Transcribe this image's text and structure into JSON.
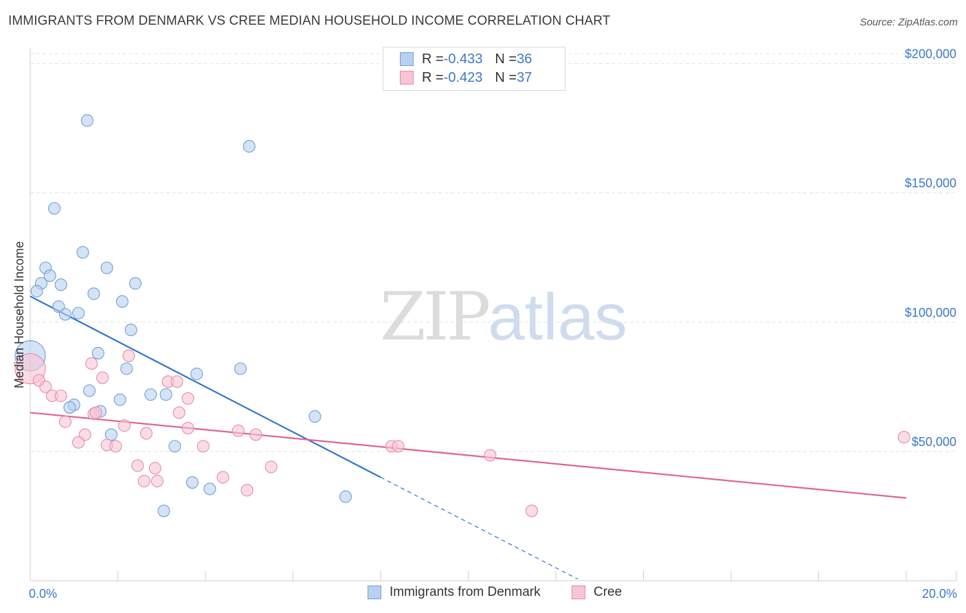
{
  "header": {
    "title": "IMMIGRANTS FROM DENMARK VS CREE MEDIAN HOUSEHOLD INCOME CORRELATION CHART",
    "source": "Source: ZipAtlas.com"
  },
  "watermark": {
    "zip": "ZIP",
    "atlas": "atlas"
  },
  "legend": {
    "rows": [
      {
        "r_label": "R = ",
        "r_value": "-0.433",
        "n_label": "N = ",
        "n_value": "36"
      },
      {
        "r_label": "R = ",
        "r_value": "-0.423",
        "n_label": "N = ",
        "n_value": "37"
      }
    ]
  },
  "bottom_legend": {
    "series1": "Immigrants from Denmark",
    "series2": "Cree"
  },
  "colors": {
    "series1_fill": "#b8d0ef",
    "series1_stroke": "#6f9fd8",
    "series1_line": "#2f74d0",
    "series2_fill": "#f7c5d4",
    "series2_stroke": "#e88aa8",
    "series2_line": "#e0648e",
    "tick": "#3b78c9",
    "grid": "#e3e3e3"
  },
  "chart_data": {
    "type": "scatter",
    "title": "IMMIGRANTS FROM DENMARK VS CREE MEDIAN HOUSEHOLD INCOME CORRELATION CHART",
    "xlabel": "",
    "ylabel": "Median Household Income",
    "xlim": [
      0,
      20.8
    ],
    "ylim": [
      0,
      206000
    ],
    "x_tick_labels": [
      {
        "value": 0,
        "label": "0.0%"
      },
      {
        "value": 20,
        "label": "20.0%"
      }
    ],
    "x_minor_ticks": [
      0,
      2,
      4,
      6,
      8,
      10,
      12,
      14,
      16,
      18,
      20
    ],
    "y_ticks": [
      {
        "value": 50000,
        "label": "$50,000"
      },
      {
        "value": 100000,
        "label": "$100,000"
      },
      {
        "value": 150000,
        "label": "$150,000"
      },
      {
        "value": 200000,
        "label": "$200,000"
      }
    ],
    "series": [
      {
        "name": "Immigrants from Denmark",
        "color_key": "series1",
        "r": -0.433,
        "n": 36,
        "trend": {
          "x0": 0,
          "y0": 110000,
          "x1": 8.0,
          "y1": 40000,
          "dash_to_x": 12.5
        },
        "points": [
          {
            "x": 1.3,
            "y": 178000
          },
          {
            "x": 5.0,
            "y": 168000
          },
          {
            "x": 0.55,
            "y": 144000
          },
          {
            "x": 1.2,
            "y": 127000
          },
          {
            "x": 0.35,
            "y": 121000
          },
          {
            "x": 1.75,
            "y": 121000
          },
          {
            "x": 0.45,
            "y": 118000
          },
          {
            "x": 0.25,
            "y": 115000
          },
          {
            "x": 0.7,
            "y": 114500
          },
          {
            "x": 2.4,
            "y": 115000
          },
          {
            "x": 0.15,
            "y": 112000
          },
          {
            "x": 1.45,
            "y": 111000
          },
          {
            "x": 2.1,
            "y": 108000
          },
          {
            "x": 0.65,
            "y": 106000
          },
          {
            "x": 0.8,
            "y": 103000
          },
          {
            "x": 1.1,
            "y": 103500
          },
          {
            "x": 2.3,
            "y": 97000
          },
          {
            "x": 0.0,
            "y": 87000,
            "big": true
          },
          {
            "x": 1.55,
            "y": 88000
          },
          {
            "x": 2.2,
            "y": 82000
          },
          {
            "x": 4.8,
            "y": 82000
          },
          {
            "x": 3.8,
            "y": 80000
          },
          {
            "x": 1.35,
            "y": 73500
          },
          {
            "x": 2.75,
            "y": 72000
          },
          {
            "x": 3.1,
            "y": 72000
          },
          {
            "x": 2.05,
            "y": 70000
          },
          {
            "x": 1.0,
            "y": 68000
          },
          {
            "x": 0.9,
            "y": 67000
          },
          {
            "x": 1.6,
            "y": 65500
          },
          {
            "x": 6.5,
            "y": 63500
          },
          {
            "x": 1.85,
            "y": 56500
          },
          {
            "x": 3.3,
            "y": 52000
          },
          {
            "x": 3.7,
            "y": 38000
          },
          {
            "x": 4.1,
            "y": 35500
          },
          {
            "x": 7.2,
            "y": 32500
          },
          {
            "x": 3.05,
            "y": 27000
          }
        ]
      },
      {
        "name": "Cree",
        "color_key": "series2",
        "r": -0.423,
        "n": 37,
        "trend": {
          "x0": 0,
          "y0": 65000,
          "x1": 20.0,
          "y1": 32000
        },
        "points": [
          {
            "x": 0.0,
            "y": 82000,
            "big": true
          },
          {
            "x": 0.2,
            "y": 77500
          },
          {
            "x": 0.35,
            "y": 75000
          },
          {
            "x": 1.4,
            "y": 84000
          },
          {
            "x": 2.25,
            "y": 87000
          },
          {
            "x": 1.65,
            "y": 78500
          },
          {
            "x": 3.15,
            "y": 77000
          },
          {
            "x": 3.35,
            "y": 77000
          },
          {
            "x": 0.5,
            "y": 71500
          },
          {
            "x": 0.7,
            "y": 71500
          },
          {
            "x": 3.6,
            "y": 70500
          },
          {
            "x": 1.45,
            "y": 64500
          },
          {
            "x": 1.5,
            "y": 65000
          },
          {
            "x": 3.4,
            "y": 65000
          },
          {
            "x": 0.8,
            "y": 61500
          },
          {
            "x": 2.15,
            "y": 60000
          },
          {
            "x": 3.6,
            "y": 59000
          },
          {
            "x": 4.75,
            "y": 58000
          },
          {
            "x": 1.25,
            "y": 56500
          },
          {
            "x": 2.65,
            "y": 57000
          },
          {
            "x": 5.15,
            "y": 56500
          },
          {
            "x": 1.1,
            "y": 53500
          },
          {
            "x": 1.75,
            "y": 52500
          },
          {
            "x": 1.95,
            "y": 52000
          },
          {
            "x": 3.95,
            "y": 52000
          },
          {
            "x": 8.25,
            "y": 52000
          },
          {
            "x": 8.4,
            "y": 52000
          },
          {
            "x": 10.5,
            "y": 48500
          },
          {
            "x": 19.95,
            "y": 55500
          },
          {
            "x": 2.45,
            "y": 44500
          },
          {
            "x": 2.85,
            "y": 43500
          },
          {
            "x": 5.5,
            "y": 44000
          },
          {
            "x": 4.4,
            "y": 40000
          },
          {
            "x": 2.6,
            "y": 38500
          },
          {
            "x": 2.9,
            "y": 38500
          },
          {
            "x": 4.95,
            "y": 35000
          },
          {
            "x": 11.45,
            "y": 27000
          }
        ]
      }
    ]
  }
}
